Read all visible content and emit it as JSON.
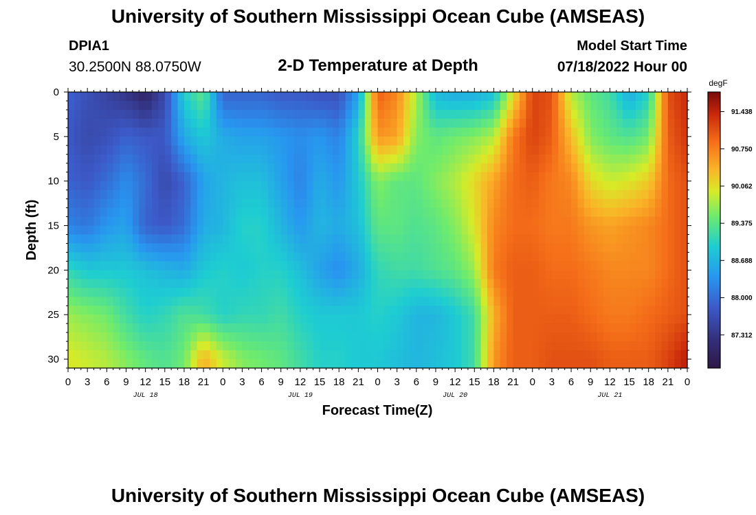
{
  "header": {
    "title": "University of Southern Mississippi Ocean Cube (AMSEAS)",
    "station_id": "DPIA1",
    "coords": "30.2500N  88.0750W",
    "start_label": "Model Start Time",
    "start_value": "07/18/2022 Hour 00"
  },
  "footer": {
    "repeat_title": "University of Southern Mississippi Ocean Cube (AMSEAS)"
  },
  "chart_data": {
    "type": "heatmap",
    "title": "2-D Temperature at Depth",
    "xlabel": "Forecast Time(Z)",
    "ylabel": "Depth (ft)",
    "x_range": [
      0,
      96
    ],
    "y_range": [
      0,
      31
    ],
    "y_inverted": true,
    "x_tick_labels": [
      "0",
      "3",
      "6",
      "9",
      "12",
      "15",
      "18",
      "21",
      "0",
      "3",
      "6",
      "9",
      "12",
      "15",
      "18",
      "21",
      "0",
      "3",
      "6",
      "9",
      "12",
      "15",
      "18",
      "21",
      "0",
      "3",
      "6",
      "9",
      "12",
      "15",
      "18",
      "21",
      "0"
    ],
    "x_date_labels": [
      {
        "label": "JUL 18",
        "hour": 12
      },
      {
        "label": "JUL 19",
        "hour": 36
      },
      {
        "label": "JUL 20",
        "hour": 60
      },
      {
        "label": "JUL 21",
        "hour": 84
      }
    ],
    "y_ticks": [
      0,
      5,
      10,
      15,
      20,
      25,
      30
    ],
    "colorbar": {
      "unit": "degF",
      "range": [
        86.7,
        91.8
      ],
      "labels": [
        "91.438",
        "90.750",
        "90.062",
        "89.375",
        "88.688",
        "88.000",
        "87.312"
      ],
      "label_values": [
        91.438,
        90.75,
        90.062,
        89.375,
        88.688,
        88.0,
        87.312
      ]
    },
    "depths": [
      0,
      5,
      10,
      15,
      20,
      25,
      30
    ],
    "times": [
      0,
      3,
      6,
      9,
      12,
      15,
      18,
      21,
      24,
      27,
      30,
      33,
      36,
      39,
      42,
      45,
      48,
      51,
      54,
      57,
      60,
      63,
      66,
      69,
      72,
      75,
      78,
      81,
      84,
      87,
      90,
      93,
      96
    ],
    "values": [
      [
        87.9,
        87.7,
        87.5,
        87.3,
        87.0,
        87.6,
        89.0,
        89.4,
        87.9,
        87.9,
        87.9,
        87.8,
        87.8,
        87.7,
        87.7,
        88.5,
        91.0,
        90.7,
        89.8,
        88.7,
        88.6,
        88.6,
        88.8,
        90.0,
        91.2,
        91.1,
        89.8,
        89.4,
        89.2,
        88.6,
        89.0,
        91.1,
        91.4
      ],
      [
        87.8,
        87.6,
        87.7,
        87.9,
        87.8,
        87.8,
        88.6,
        88.9,
        88.6,
        88.5,
        88.5,
        88.4,
        88.3,
        88.4,
        88.2,
        89.0,
        90.6,
        90.5,
        89.6,
        89.4,
        89.5,
        89.6,
        89.8,
        90.8,
        91.2,
        91.0,
        90.3,
        89.6,
        89.4,
        89.3,
        89.5,
        91.0,
        91.3
      ],
      [
        87.9,
        87.8,
        88.0,
        88.3,
        88.0,
        87.6,
        87.9,
        88.5,
        88.7,
        88.8,
        88.8,
        88.5,
        88.2,
        88.6,
        88.4,
        88.9,
        89.6,
        89.4,
        89.4,
        89.6,
        89.8,
        90.1,
        90.5,
        90.9,
        91.0,
        90.8,
        90.7,
        90.1,
        89.9,
        90.0,
        90.2,
        90.9,
        91.1
      ],
      [
        88.2,
        88.1,
        88.4,
        88.5,
        87.9,
        87.8,
        88.0,
        88.6,
        88.7,
        89.0,
        89.0,
        88.7,
        88.4,
        88.7,
        88.6,
        88.8,
        89.4,
        89.4,
        89.3,
        89.4,
        89.6,
        90.0,
        90.7,
        90.9,
        90.9,
        90.8,
        90.8,
        90.6,
        90.5,
        90.6,
        90.7,
        90.9,
        91.1
      ],
      [
        89.1,
        88.9,
        88.9,
        88.9,
        88.8,
        88.7,
        88.6,
        88.9,
        89.0,
        88.9,
        89.0,
        89.0,
        88.8,
        88.5,
        88.3,
        88.6,
        89.1,
        89.2,
        89.2,
        89.3,
        89.4,
        89.7,
        90.8,
        91.0,
        91.0,
        90.9,
        90.9,
        90.8,
        90.7,
        90.7,
        90.7,
        90.9,
        91.1
      ],
      [
        89.7,
        89.6,
        89.5,
        89.2,
        89.0,
        89.1,
        89.3,
        89.2,
        89.0,
        89.1,
        89.1,
        89.2,
        89.0,
        88.9,
        88.9,
        88.9,
        89.0,
        88.9,
        88.7,
        88.7,
        88.9,
        89.2,
        90.4,
        91.0,
        91.0,
        91.0,
        91.0,
        90.9,
        90.8,
        90.8,
        90.9,
        91.0,
        91.1
      ],
      [
        90.0,
        89.9,
        89.8,
        89.6,
        89.4,
        89.3,
        89.5,
        90.4,
        89.9,
        89.6,
        89.5,
        89.4,
        89.2,
        89.0,
        89.0,
        88.9,
        88.9,
        88.8,
        88.7,
        88.8,
        88.9,
        89.2,
        90.6,
        91.0,
        91.0,
        91.1,
        91.1,
        91.1,
        91.0,
        91.0,
        91.0,
        91.2,
        91.5
      ]
    ]
  }
}
